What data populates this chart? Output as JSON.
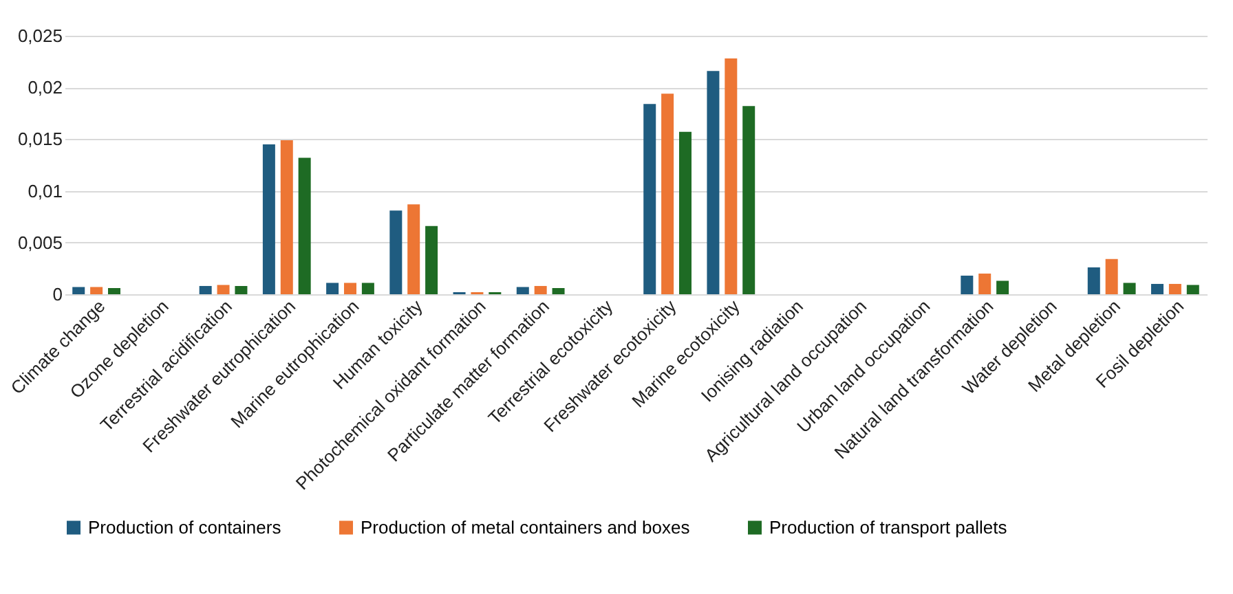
{
  "chart_data": {
    "type": "bar",
    "categories": [
      "Climate change",
      "Ozone depletion",
      "Terrestrial acidification",
      "Freshwater eutrophication",
      "Marine eutrophication",
      "Human toxicity",
      "Photochemical oxidant formation",
      "Particulate matter formation",
      "Terrestrial ecotoxicity",
      "Freshwater ecotoxicity",
      "Marine ecotoxicity",
      "Ionising radiation",
      "Agricultural land occupation",
      "Urban land occupation",
      "Natural land transformation",
      "Water depletion",
      "Metal depletion",
      "Fosil depletion"
    ],
    "series": [
      {
        "name": "Production of containers",
        "color": "#1f5c80",
        "values": [
          0.0007,
          0,
          0.0008,
          0.0145,
          0.0011,
          0.0081,
          0.0002,
          0.0007,
          0,
          0.0184,
          0.0216,
          0,
          0,
          0,
          0.0018,
          0,
          0.0026,
          0.001
        ]
      },
      {
        "name": "Production of metal containers and boxes",
        "color": "#ed7634",
        "values": [
          0.0007,
          0,
          0.0009,
          0.0149,
          0.0011,
          0.0087,
          0.0002,
          0.0008,
          0,
          0.0194,
          0.0228,
          0,
          0,
          0,
          0.002,
          0,
          0.0034,
          0.001
        ]
      },
      {
        "name": "Production of transport pallets",
        "color": "#1e6b24",
        "values": [
          0.0006,
          0,
          0.0008,
          0.0132,
          0.0011,
          0.0066,
          0.0002,
          0.0006,
          0,
          0.0157,
          0.0182,
          0,
          0,
          0,
          0.0013,
          0,
          0.0011,
          0.0009
        ]
      }
    ],
    "ylim": [
      0,
      0.025
    ],
    "yticks": [
      {
        "value": 0,
        "label": "0"
      },
      {
        "value": 0.005,
        "label": "0,005"
      },
      {
        "value": 0.01,
        "label": "0,01"
      },
      {
        "value": 0.015,
        "label": "0,015"
      },
      {
        "value": 0.02,
        "label": "0,02"
      },
      {
        "value": 0.025,
        "label": "0,025"
      }
    ],
    "grid": "y",
    "legend": "bottom"
  }
}
